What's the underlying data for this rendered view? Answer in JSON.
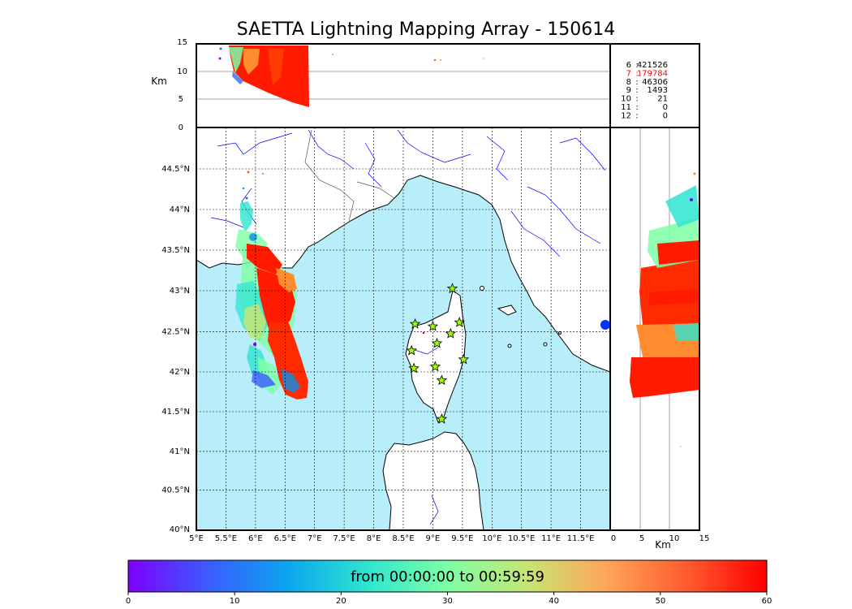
{
  "title": "SAETTA Lightning Mapping Array - 150614",
  "altitude_panel": {
    "ylabel": "Km",
    "yticks": [
      "0",
      "5",
      "10",
      "15"
    ]
  },
  "right_panel": {
    "xlabel": "Km",
    "xticks": [
      "0",
      "5",
      "10",
      "15"
    ]
  },
  "map": {
    "lon_ticks": [
      "5°E",
      "5.5°E",
      "6°E",
      "6.5°E",
      "7°E",
      "7.5°E",
      "8°E",
      "8.5°E",
      "9°E",
      "9.5°E",
      "10°E",
      "10.5°E",
      "11°E",
      "11.5°E"
    ],
    "lat_ticks": [
      "40°N",
      "40.5°N",
      "41°N",
      "41.5°N",
      "42°N",
      "42.5°N",
      "43°N",
      "43.5°N",
      "44°N",
      "44.5°N"
    ],
    "land_color": "#ffffff",
    "sea_color": "#b7eefa",
    "coast_color": "#000000",
    "river_color": "#0000ff",
    "border_color": "#555555",
    "station_color": "#9bff00",
    "stations": [
      {
        "lon": 8.7,
        "lat": 42.56
      },
      {
        "lon": 9.0,
        "lat": 42.53
      },
      {
        "lon": 9.33,
        "lat": 43.0
      },
      {
        "lon": 9.45,
        "lat": 42.58
      },
      {
        "lon": 9.3,
        "lat": 42.44
      },
      {
        "lon": 9.07,
        "lat": 42.32
      },
      {
        "lon": 8.64,
        "lat": 42.23
      },
      {
        "lon": 8.68,
        "lat": 42.01
      },
      {
        "lon": 9.04,
        "lat": 42.03
      },
      {
        "lon": 9.52,
        "lat": 42.12
      },
      {
        "lon": 9.15,
        "lat": 41.86
      },
      {
        "lon": 9.15,
        "lat": 41.38
      }
    ]
  },
  "stats": [
    {
      "label": "6",
      "value": "421526",
      "highlight": false
    },
    {
      "label": "7",
      "value": "179784",
      "highlight": true
    },
    {
      "label": "8",
      "value": "46306",
      "highlight": false
    },
    {
      "label": "9",
      "value": "1493",
      "highlight": false
    },
    {
      "label": "10",
      "value": "21",
      "highlight": false
    },
    {
      "label": "11",
      "value": "0",
      "highlight": false
    },
    {
      "label": "12",
      "value": "0",
      "highlight": false
    }
  ],
  "stats_highlight_color": "#ff0000",
  "colorbar": {
    "text": "from 00:00:00 to 00:59:59",
    "ticks": [
      "0",
      "10",
      "20",
      "30",
      "40",
      "50",
      "60"
    ],
    "colors": [
      "#7f00ff",
      "#3b5bff",
      "#0ba6ee",
      "#2ee5d0",
      "#7effa5",
      "#c6e573",
      "#ffa55a",
      "#ff5b2e",
      "#ff0000"
    ]
  }
}
